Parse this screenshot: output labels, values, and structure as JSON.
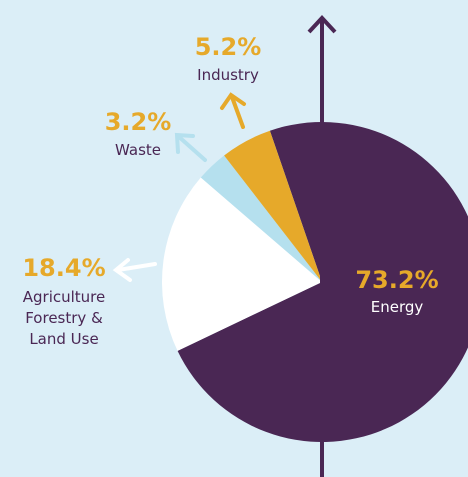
{
  "chart_data": {
    "type": "pie",
    "categories": [
      "Energy",
      "Agriculture\nForestry &\nLand Use",
      "Waste",
      "Industry"
    ],
    "values": [
      73.2,
      18.4,
      3.2,
      5.2
    ],
    "value_labels": [
      "73.2%",
      "18.4%",
      "3.2%",
      "5.2%"
    ],
    "colors": [
      "#4a2754",
      "#ffffff",
      "#b5e0ee",
      "#e6a92a"
    ]
  }
}
